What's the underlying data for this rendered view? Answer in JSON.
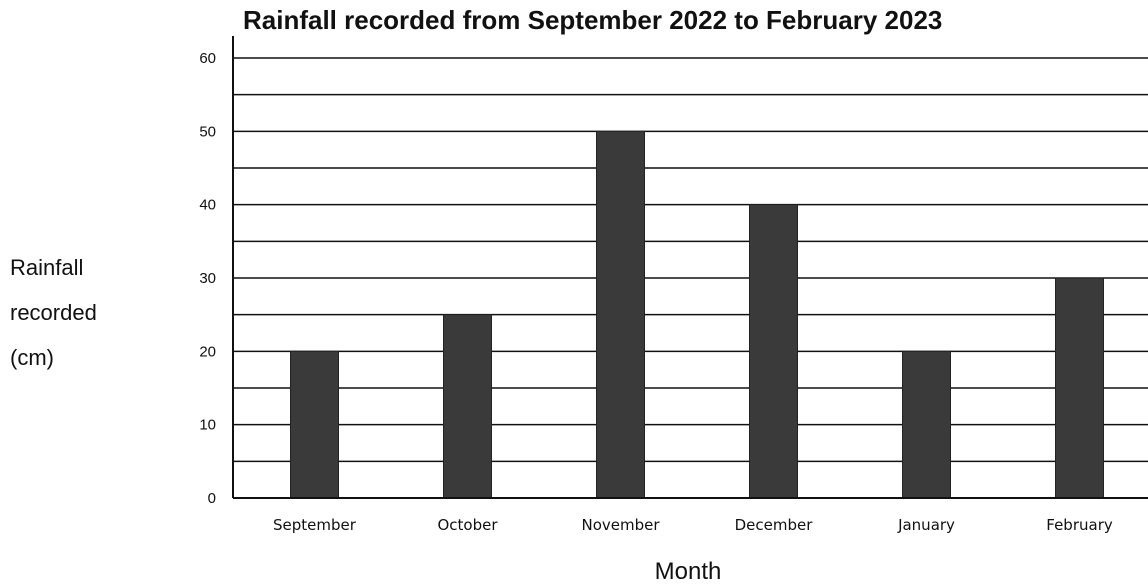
{
  "chart_data": {
    "type": "bar",
    "title": "Rainfall recorded from September 2022 to February 2023",
    "xlabel": "Month",
    "ylabel": "Rainfall recorded (cm)",
    "ylabel_lines": [
      "Rainfall",
      "recorded",
      "(cm)"
    ],
    "categories": [
      "September",
      "October",
      "November",
      "December",
      "January",
      "February"
    ],
    "values": [
      20,
      25,
      50,
      40,
      20,
      30
    ],
    "yticks": [
      0,
      10,
      20,
      30,
      40,
      50,
      60
    ],
    "ylim": [
      0,
      60
    ],
    "grid": true,
    "minor_grid_step": 5,
    "bar_color": "#3a3a3a",
    "grid_color": "#111111"
  }
}
